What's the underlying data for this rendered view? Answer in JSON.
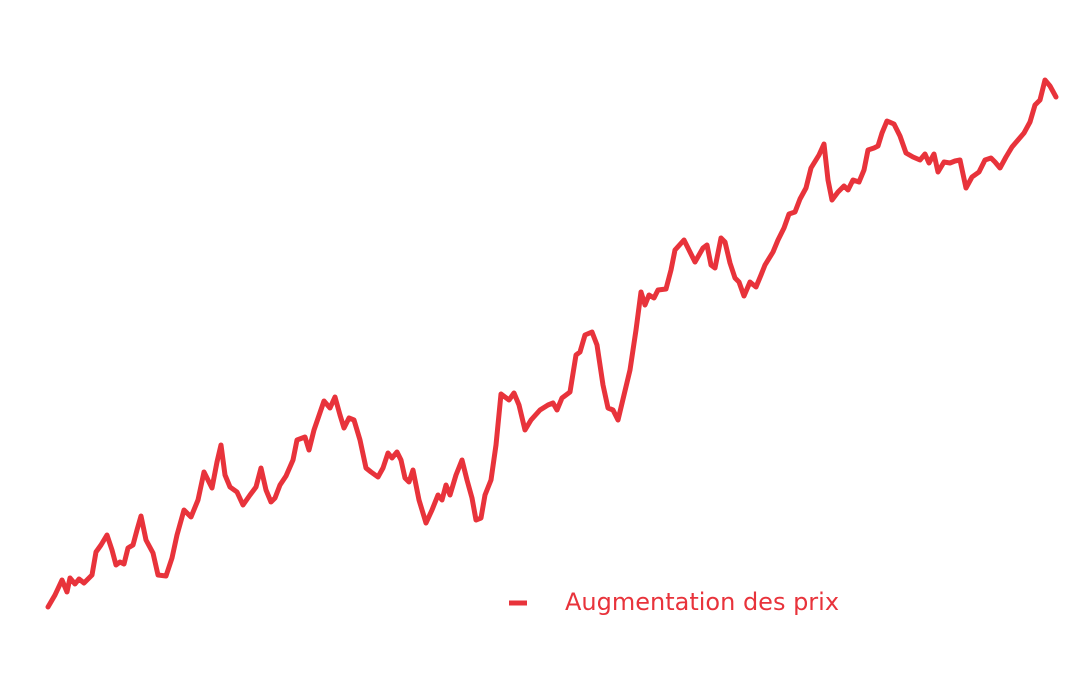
{
  "chart_data": {
    "type": "line",
    "x": [
      0,
      7,
      14,
      19,
      22,
      27,
      31,
      36,
      44,
      48,
      53,
      59,
      64,
      68,
      72,
      76,
      80,
      85,
      89,
      93,
      98,
      105,
      110,
      118,
      124,
      129,
      136,
      143,
      150,
      156,
      164,
      169,
      173,
      177,
      182,
      189,
      195,
      202,
      208,
      213,
      218,
      223,
      227,
      232,
      238,
      245,
      249,
      257,
      261,
      266,
      276,
      282,
      287,
      292,
      296,
      301,
      306,
      312,
      318,
      323,
      330,
      335,
      340,
      344,
      349,
      353,
      357,
      361,
      365,
      371,
      378,
      384,
      390,
      394,
      398,
      402,
      408,
      414,
      419,
      424,
      428,
      433,
      437,
      443,
      448,
      453,
      461,
      466,
      471,
      477,
      483,
      492,
      500,
      505,
      509,
      514,
      522,
      528,
      532,
      537,
      544,
      549,
      555,
      560,
      565,
      570,
      576,
      582,
      588,
      593,
      597,
      601,
      606,
      610,
      618,
      623,
      627,
      636,
      642,
      647,
      655,
      659,
      663,
      667,
      673,
      677,
      682,
      687,
      691,
      696,
      702,
      708,
      713,
      717,
      725,
      730,
      736,
      741,
      747,
      752,
      758,
      763,
      771,
      776,
      780,
      784,
      790,
      796,
      800,
      805,
      811,
      816,
      820,
      826,
      830,
      834,
      839,
      846,
      852,
      858,
      865,
      872,
      877,
      881,
      886,
      890,
      896,
      902,
      907,
      912,
      918,
      924,
      931,
      937,
      943,
      947,
      952,
      958,
      964,
      970,
      976,
      982,
      987,
      992,
      997,
      1002,
      1008
    ],
    "series": [
      {
        "name": "Augmentation des prix",
        "color": "#e8333b",
        "values": [
          13,
          25,
          40,
          28,
          42,
          36,
          41,
          37,
          45,
          68,
          75,
          85,
          70,
          55,
          58,
          56,
          72,
          75,
          90,
          104,
          80,
          67,
          45,
          44,
          62,
          85,
          110,
          103,
          120,
          148,
          132,
          158,
          175,
          145,
          133,
          128,
          115,
          125,
          133,
          152,
          130,
          118,
          122,
          135,
          144,
          160,
          180,
          183,
          170,
          190,
          219,
          212,
          223,
          205,
          192,
          202,
          200,
          180,
          152,
          148,
          143,
          152,
          167,
          162,
          168,
          160,
          142,
          138,
          150,
          120,
          97,
          110,
          125,
          120,
          135,
          125,
          145,
          160,
          140,
          122,
          100,
          102,
          125,
          140,
          175,
          226,
          220,
          227,
          215,
          190,
          200,
          210,
          215,
          217,
          210,
          222,
          228,
          265,
          268,
          285,
          288,
          275,
          235,
          212,
          210,
          200,
          225,
          250,
          290,
          328,
          315,
          325,
          322,
          330,
          331,
          350,
          370,
          380,
          368,
          358,
          372,
          375,
          355,
          352,
          382,
          378,
          357,
          342,
          338,
          324,
          338,
          333,
          345,
          355,
          368,
          380,
          392,
          406,
          408,
          421,
          432,
          452,
          465,
          476,
          440,
          420,
          428,
          434,
          430,
          440,
          438,
          450,
          470,
          472,
          474,
          487,
          499,
          496,
          484,
          467,
          463,
          460,
          466,
          457,
          466,
          448,
          458,
          457,
          459,
          460,
          432,
          443,
          448,
          460,
          462,
          458,
          452,
          463,
          473,
          480,
          487,
          498,
          515,
          520,
          540,
          534,
          523
        ]
      }
    ],
    "xlim": [
      0,
      1008
    ],
    "ylim": [
      10,
      572
    ]
  }
}
